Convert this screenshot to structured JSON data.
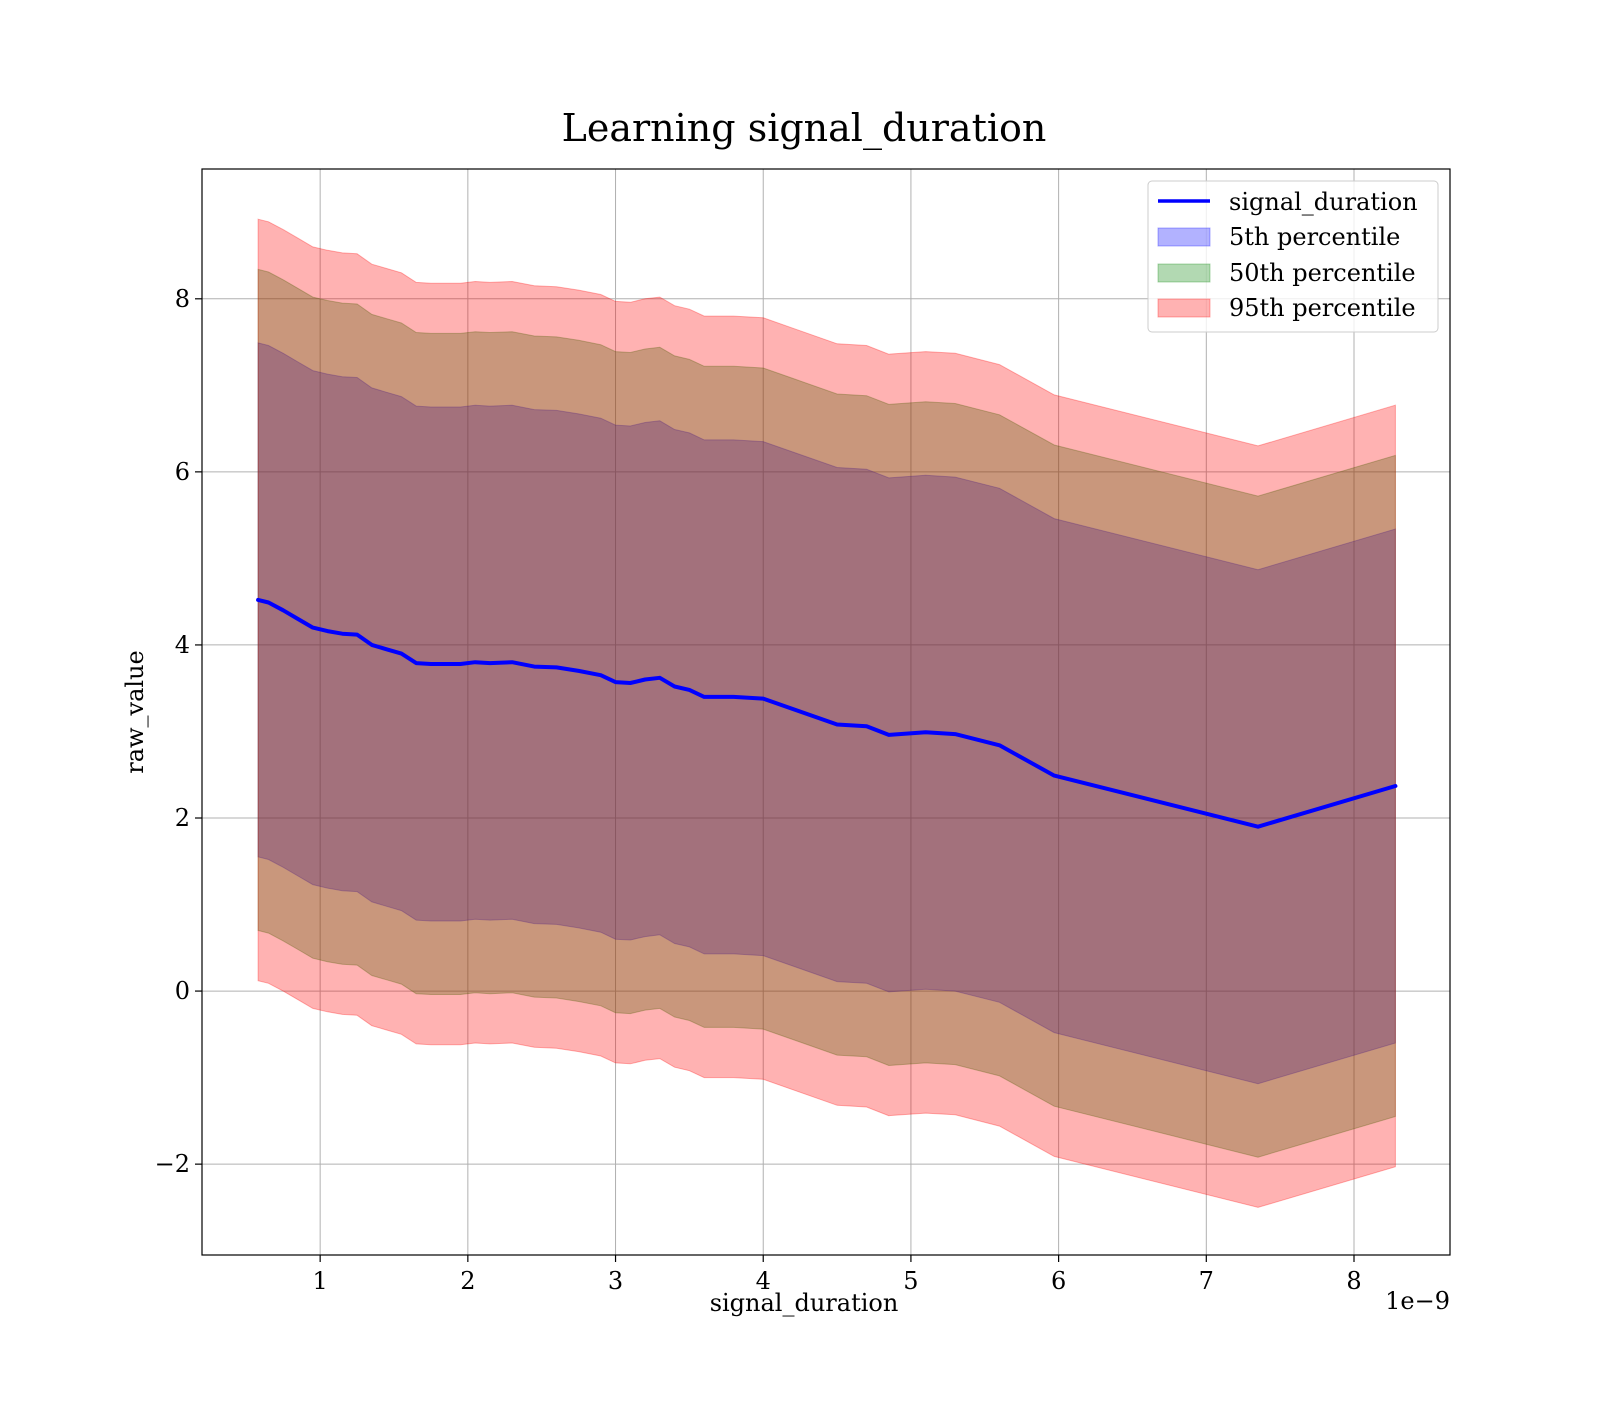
{
  "chart_data": {
    "type": "area",
    "title": "Learning signal_duration",
    "xlabel": "signal_duration",
    "ylabel": "raw_value",
    "x_scale_label": "1e−9",
    "xlim": [
      0.2,
      8.65
    ],
    "ylim": [
      -3.05,
      9.5
    ],
    "x_ticks": [
      1,
      2,
      3,
      4,
      5,
      6,
      7,
      8
    ],
    "x_tick_labels": [
      "1",
      "2",
      "3",
      "4",
      "5",
      "6",
      "7",
      "8"
    ],
    "y_ticks": [
      -2,
      0,
      2,
      4,
      6,
      8
    ],
    "y_tick_labels": [
      "−2",
      "0",
      "2",
      "4",
      "6",
      "8"
    ],
    "grid": true,
    "legend_position": "top-right",
    "x": [
      0.58,
      0.65,
      0.75,
      0.85,
      0.95,
      1.05,
      1.15,
      1.25,
      1.35,
      1.45,
      1.55,
      1.65,
      1.75,
      1.85,
      1.95,
      2.05,
      2.15,
      2.3,
      2.45,
      2.6,
      2.75,
      2.9,
      3.0,
      3.1,
      3.2,
      3.3,
      3.4,
      3.5,
      3.6,
      3.8,
      4.0,
      4.2,
      4.5,
      4.7,
      4.85,
      5.1,
      5.3,
      5.6,
      5.97,
      7.35,
      8.28
    ],
    "series": [
      {
        "name": "signal_duration",
        "color": "#0000ff",
        "values": [
          4.52,
          4.49,
          4.4,
          4.3,
          4.2,
          4.16,
          4.13,
          4.12,
          4.0,
          3.95,
          3.9,
          3.79,
          3.78,
          3.78,
          3.78,
          3.8,
          3.79,
          3.8,
          3.75,
          3.74,
          3.7,
          3.65,
          3.57,
          3.56,
          3.6,
          3.62,
          3.52,
          3.48,
          3.4,
          3.4,
          3.38,
          3.26,
          3.08,
          3.06,
          2.96,
          2.99,
          2.97,
          2.84,
          2.49,
          1.9,
          2.37
        ]
      }
    ],
    "bands": [
      {
        "name": "5th percentile",
        "color": "#0000ff",
        "opacity": 0.3,
        "offset": 2.97
      },
      {
        "name": "50th percentile",
        "color": "#008000",
        "opacity": 0.3,
        "offset": 3.82
      },
      {
        "name": "95th percentile",
        "color": "#ff0000",
        "opacity": 0.3,
        "offset": 4.4
      }
    ]
  }
}
